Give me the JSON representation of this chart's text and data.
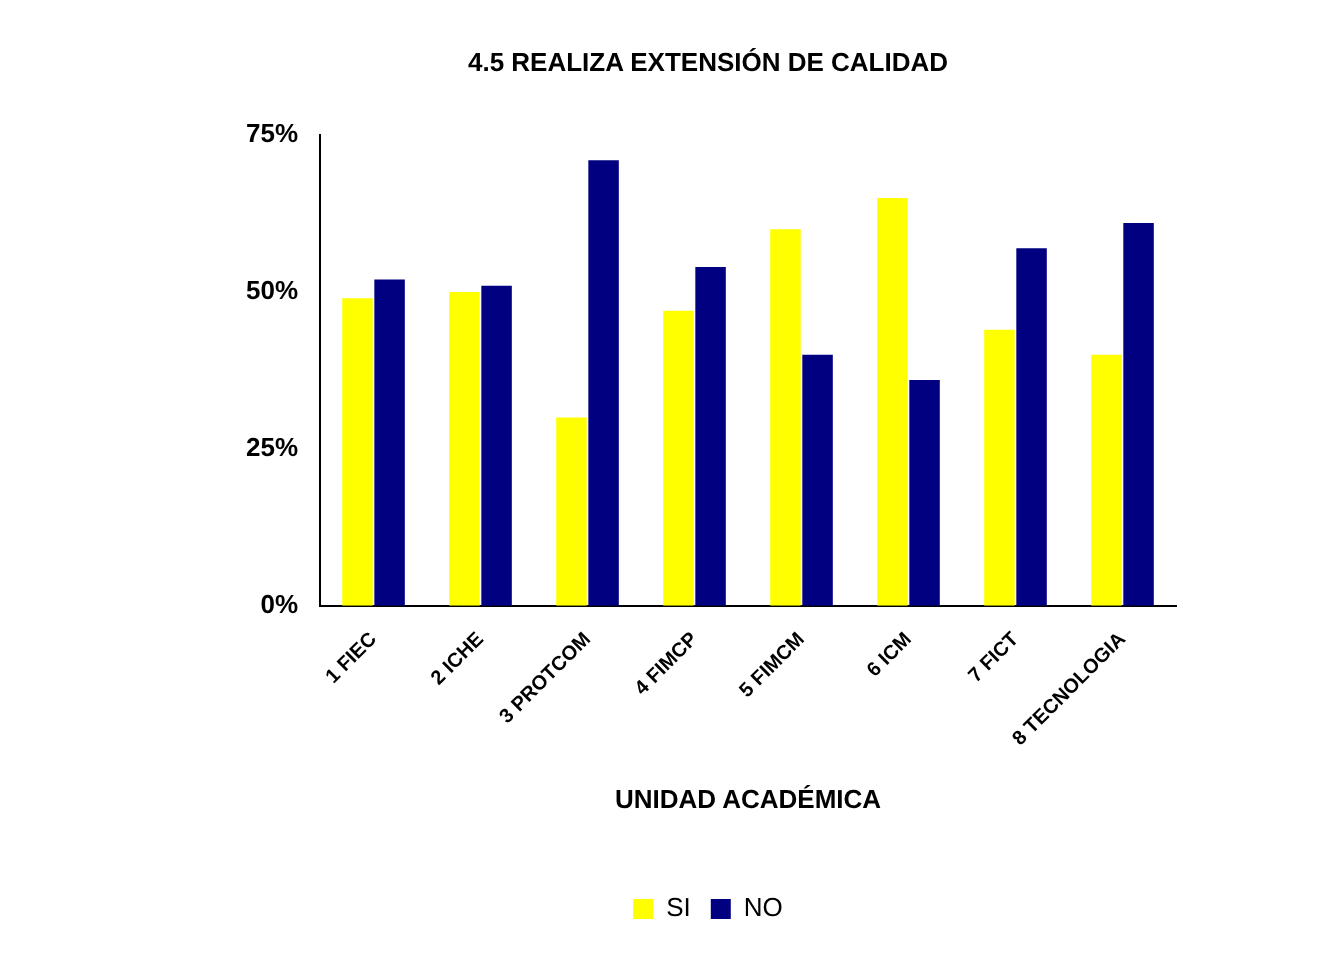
{
  "chart_data": {
    "type": "bar",
    "title": "4.5 REALIZA EXTENSIÓN DE CALIDAD",
    "xlabel": "UNIDAD ACADÉMICA",
    "categories": [
      "1 FIEC",
      "2 ICHE",
      "3 PROTCOM",
      "4 FIMCP",
      "5 FIMCM",
      "6 ICM",
      "7 FICT",
      "8 TECNOLOGIA"
    ],
    "series": [
      {
        "name": "SI",
        "color": "#ffff00",
        "values": [
          49,
          50,
          30,
          47,
          60,
          65,
          44,
          40
        ]
      },
      {
        "name": "NO",
        "color": "#000080",
        "values": [
          52,
          51,
          71,
          54,
          40,
          36,
          57,
          61
        ]
      }
    ],
    "ylim": [
      0,
      75
    ],
    "yticks": [
      {
        "value": 0,
        "label": "0%"
      },
      {
        "value": 25,
        "label": "25%"
      },
      {
        "value": 50,
        "label": "50%"
      },
      {
        "value": 75,
        "label": "75%"
      }
    ],
    "grid": false,
    "legend": "bottom"
  }
}
